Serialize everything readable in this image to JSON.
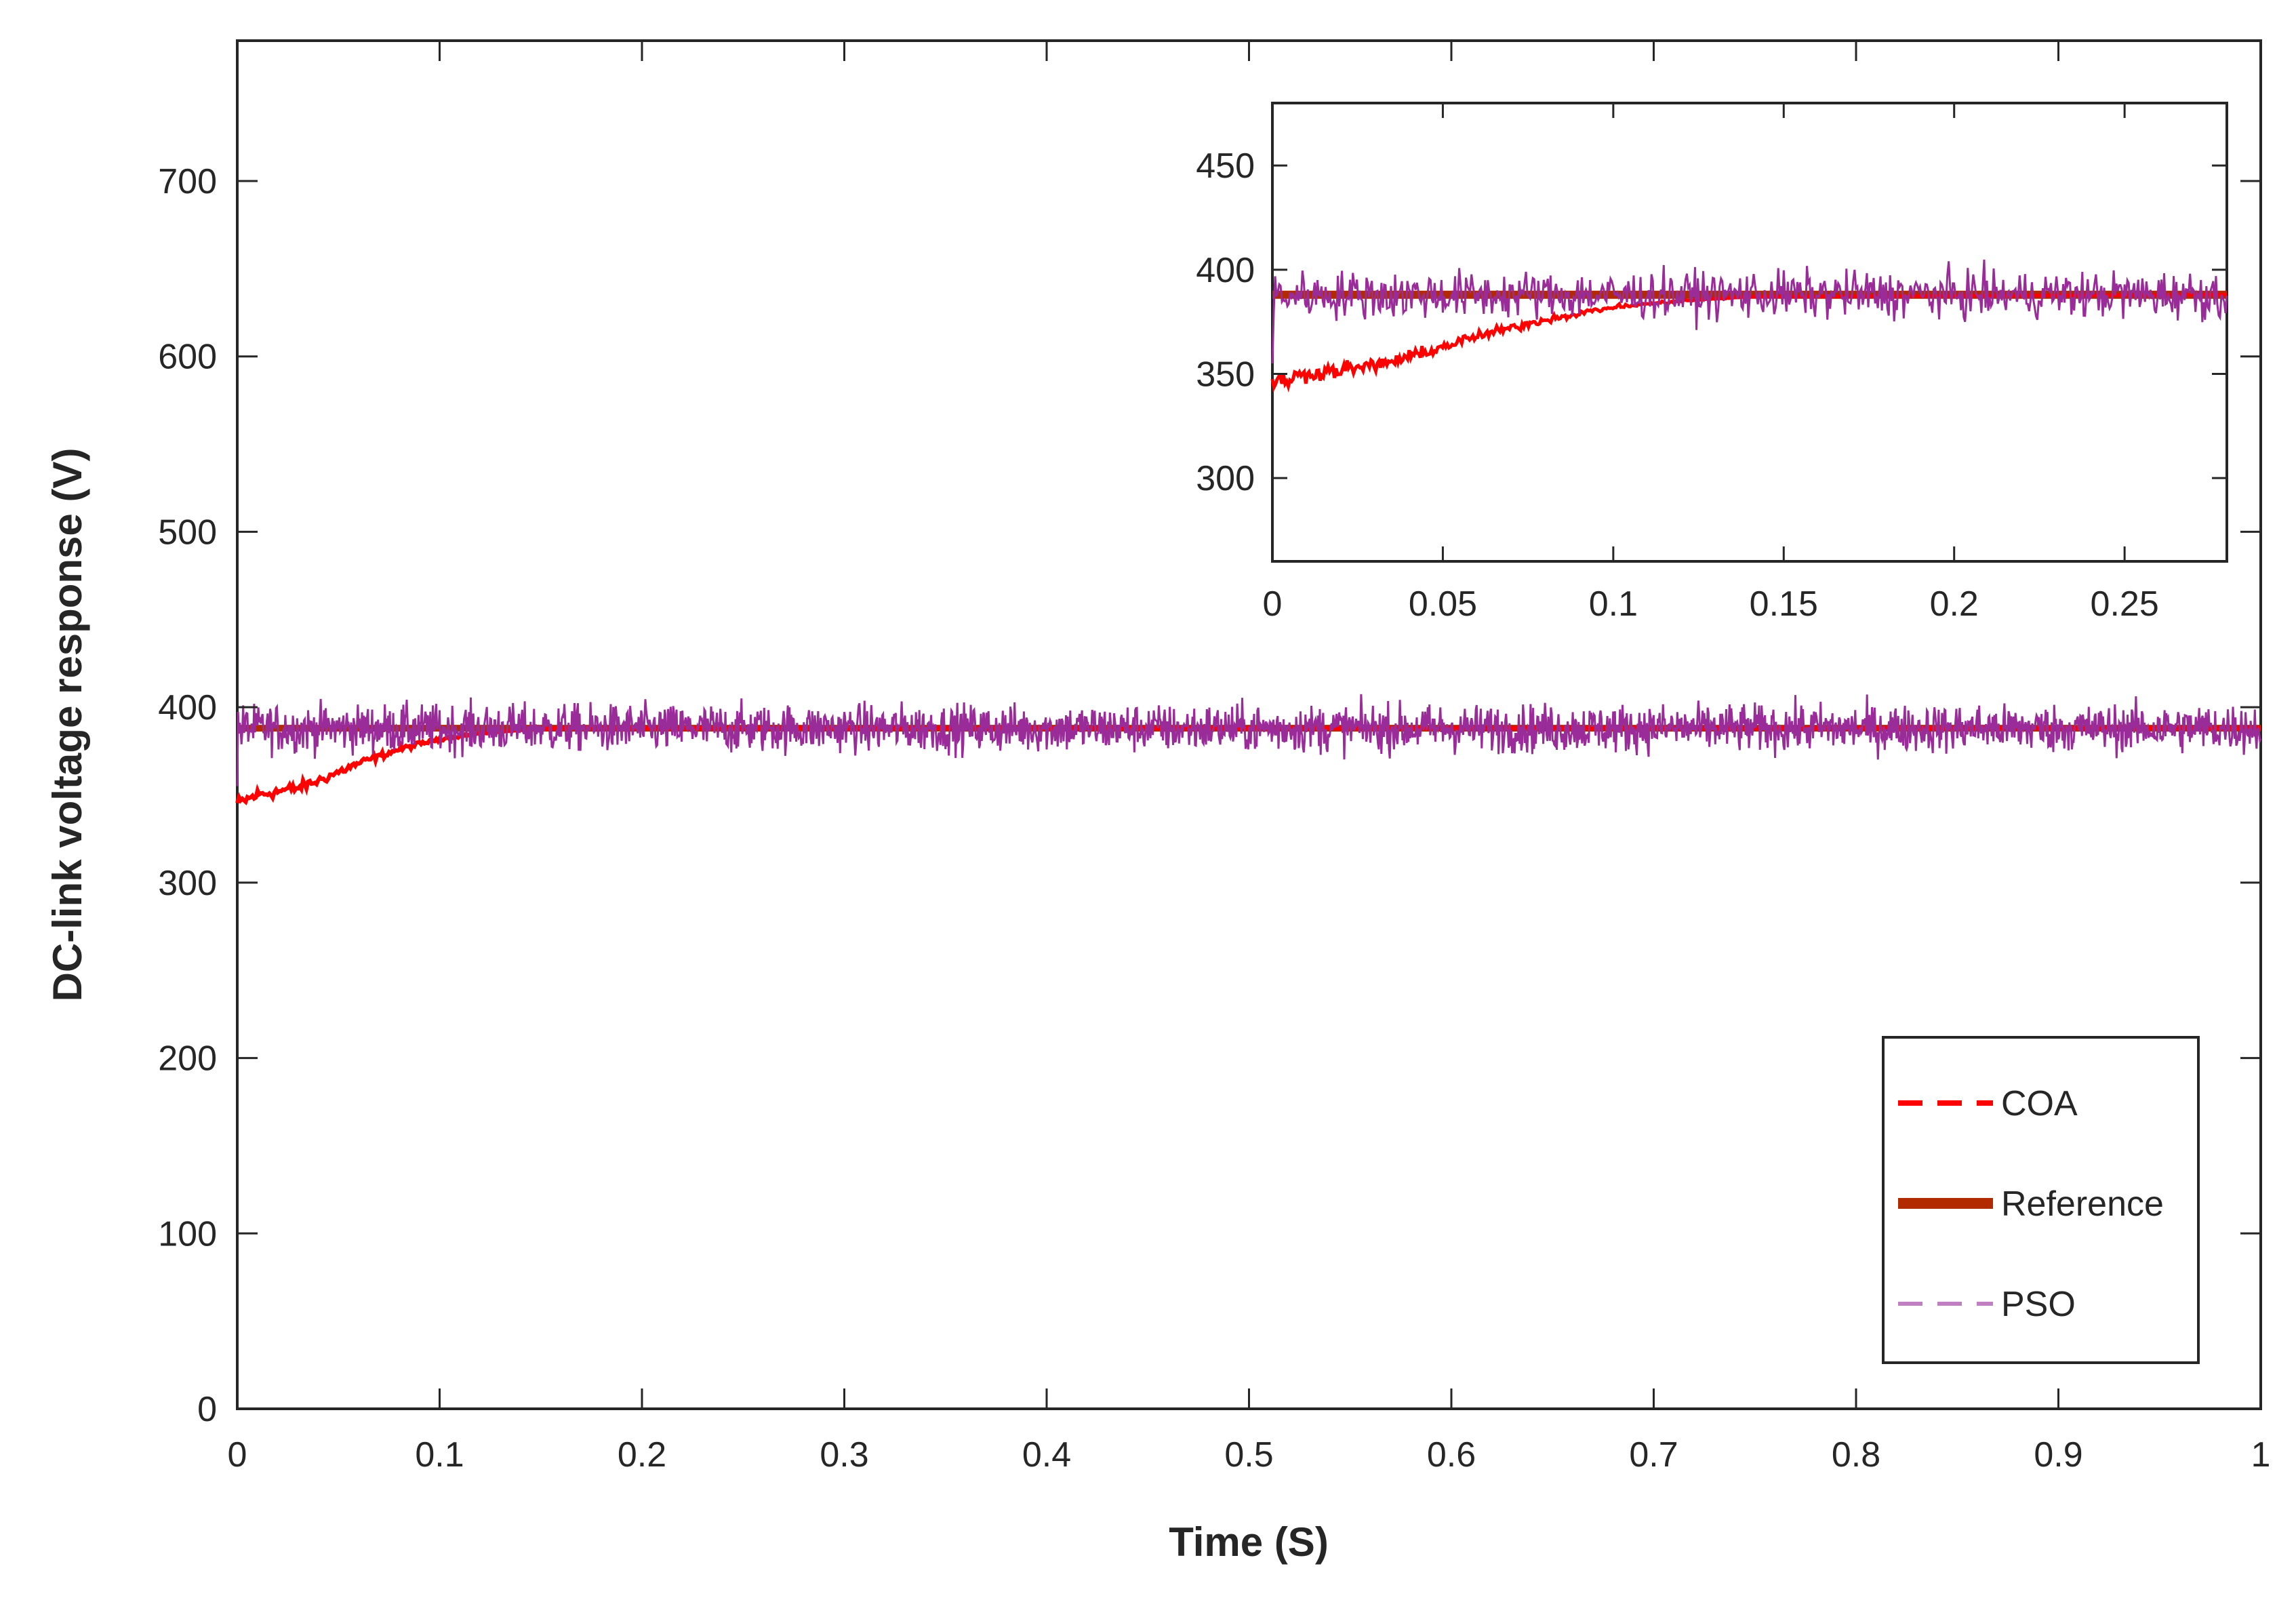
{
  "chart_data": [
    {
      "id": "main",
      "type": "line",
      "title": "",
      "xlabel": "Time (S)",
      "ylabel": "DC-link voltage response (V)",
      "xlim": [
        0,
        1
      ],
      "ylim": [
        0,
        780
      ],
      "xticks": [
        0,
        0.1,
        0.2,
        0.3,
        0.4,
        0.5,
        0.6,
        0.7,
        0.8,
        0.9,
        1
      ],
      "xtick_labels": [
        "0",
        "0.1",
        "0.2",
        "0.3",
        "0.4",
        "0.5",
        "0.6",
        "0.7",
        "0.8",
        "0.9",
        "1"
      ],
      "yticks": [
        0,
        100,
        200,
        300,
        400,
        500,
        600,
        700
      ],
      "ytick_labels": [
        "0",
        "100",
        "200",
        "300",
        "400",
        "500",
        "600",
        "700"
      ],
      "grid": false,
      "legend_position": "bottom-right",
      "series": [
        {
          "name": "COA",
          "style": "dashed",
          "color": "#ff0000",
          "description": "rises from about 345 V at t=0 and settles to about 388 V by t≈0.15 s",
          "x": [
            0,
            0.01,
            0.02,
            0.03,
            0.04,
            0.05,
            0.06,
            0.07,
            0.08,
            0.09,
            0.1,
            0.12,
            0.14,
            0.16,
            1
          ],
          "y": [
            345,
            350,
            352,
            354,
            358,
            363,
            368,
            372,
            376,
            379,
            382,
            385,
            387,
            388,
            388
          ]
        },
        {
          "name": "Reference",
          "style": "solid-thick",
          "color": "#b22a00",
          "x": [
            0,
            1
          ],
          "y": [
            388,
            388
          ]
        },
        {
          "name": "PSO",
          "style": "dashed",
          "color": "#9a2c9a",
          "description": "noisy signal fluctuating around 388 V with amplitude of roughly ±30 V over the whole interval",
          "mean": 388,
          "amplitude": 30,
          "x": [
            0,
            1
          ]
        }
      ],
      "legend": [
        "COA",
        "Reference",
        "PSO"
      ]
    },
    {
      "id": "inset",
      "type": "line",
      "title": "",
      "xlabel": "",
      "ylabel": "",
      "xlim": [
        0,
        0.28
      ],
      "ylim": [
        260,
        480
      ],
      "xticks": [
        0,
        0.05,
        0.1,
        0.15,
        0.2,
        0.25
      ],
      "xtick_labels": [
        "0",
        "0.05",
        "0.1",
        "0.15",
        "0.2",
        "0.25"
      ],
      "yticks": [
        300,
        350,
        400,
        450
      ],
      "ytick_labels": [
        "300",
        "350",
        "400",
        "450"
      ],
      "grid": false,
      "series": [
        {
          "name": "COA",
          "color": "#ff0000",
          "x": [
            0,
            0.01,
            0.02,
            0.03,
            0.04,
            0.05,
            0.06,
            0.07,
            0.08,
            0.09,
            0.1,
            0.12,
            0.14,
            0.28
          ],
          "y": [
            345,
            350,
            352,
            354,
            358,
            363,
            368,
            372,
            376,
            379,
            382,
            385,
            387,
            388
          ]
        },
        {
          "name": "Reference",
          "color": "#b22a00",
          "x": [
            0,
            0.28
          ],
          "y": [
            388,
            388
          ]
        },
        {
          "name": "PSO",
          "color": "#9a2c9a",
          "mean": 388,
          "amplitude": 25,
          "x": [
            0,
            0.28
          ]
        }
      ]
    }
  ]
}
